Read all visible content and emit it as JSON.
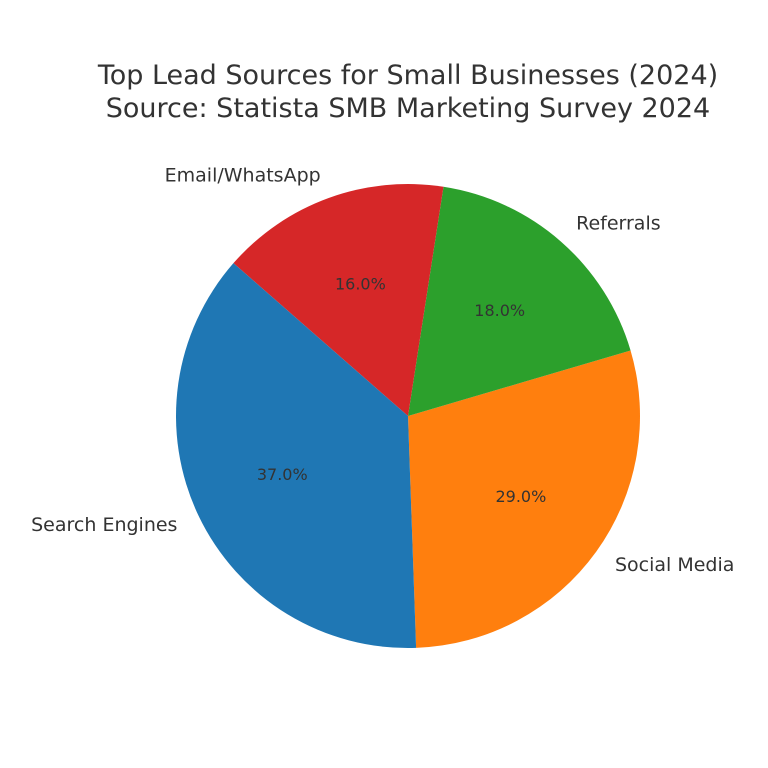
{
  "chart_data": {
    "type": "pie",
    "title": "Top Lead Sources for Small Businesses (2024)",
    "subtitle": "Source: Statista SMB Marketing Survey 2024",
    "slices": [
      {
        "label": "Social Media",
        "value": 29.0,
        "pct_label": "29.0%",
        "color": "#ff7f0e"
      },
      {
        "label": "Referrals",
        "value": 18.0,
        "pct_label": "18.0%",
        "color": "#2ca02c"
      },
      {
        "label": "Email/WhatsApp",
        "value": 16.0,
        "pct_label": "16.0%",
        "color": "#d62728"
      },
      {
        "label": "Search Engines",
        "value": 37.0,
        "pct_label": "37.0%",
        "color": "#1f77b4"
      }
    ],
    "start_angle_deg": -88,
    "direction": "counterclockwise",
    "legend": "none"
  }
}
